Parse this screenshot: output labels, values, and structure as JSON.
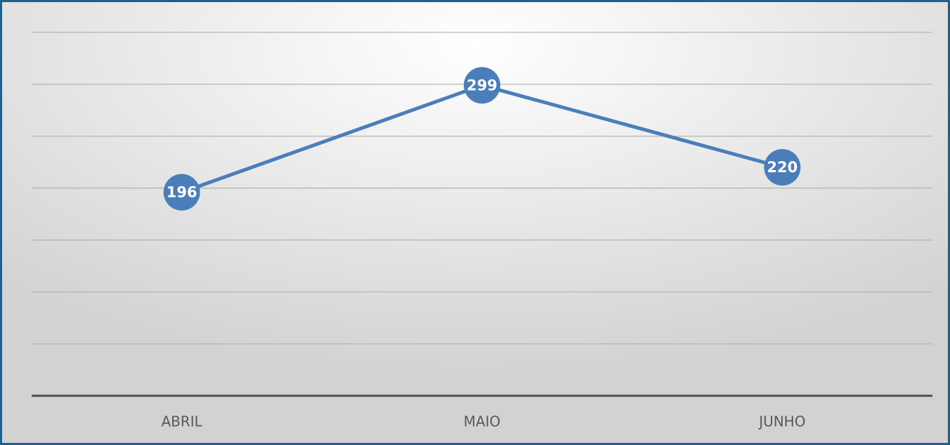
{
  "chart_data": {
    "type": "line",
    "categories": [
      "ABRIL",
      "MAIO",
      "JUNHO"
    ],
    "series": [
      {
        "name": null,
        "color": "#4a7ebb",
        "values": [
          196,
          299,
          220
        ]
      }
    ],
    "ylim": [
      0,
      350
    ],
    "yticks": [
      0,
      50,
      100,
      150,
      200,
      250,
      300,
      350
    ],
    "grid": true
  }
}
